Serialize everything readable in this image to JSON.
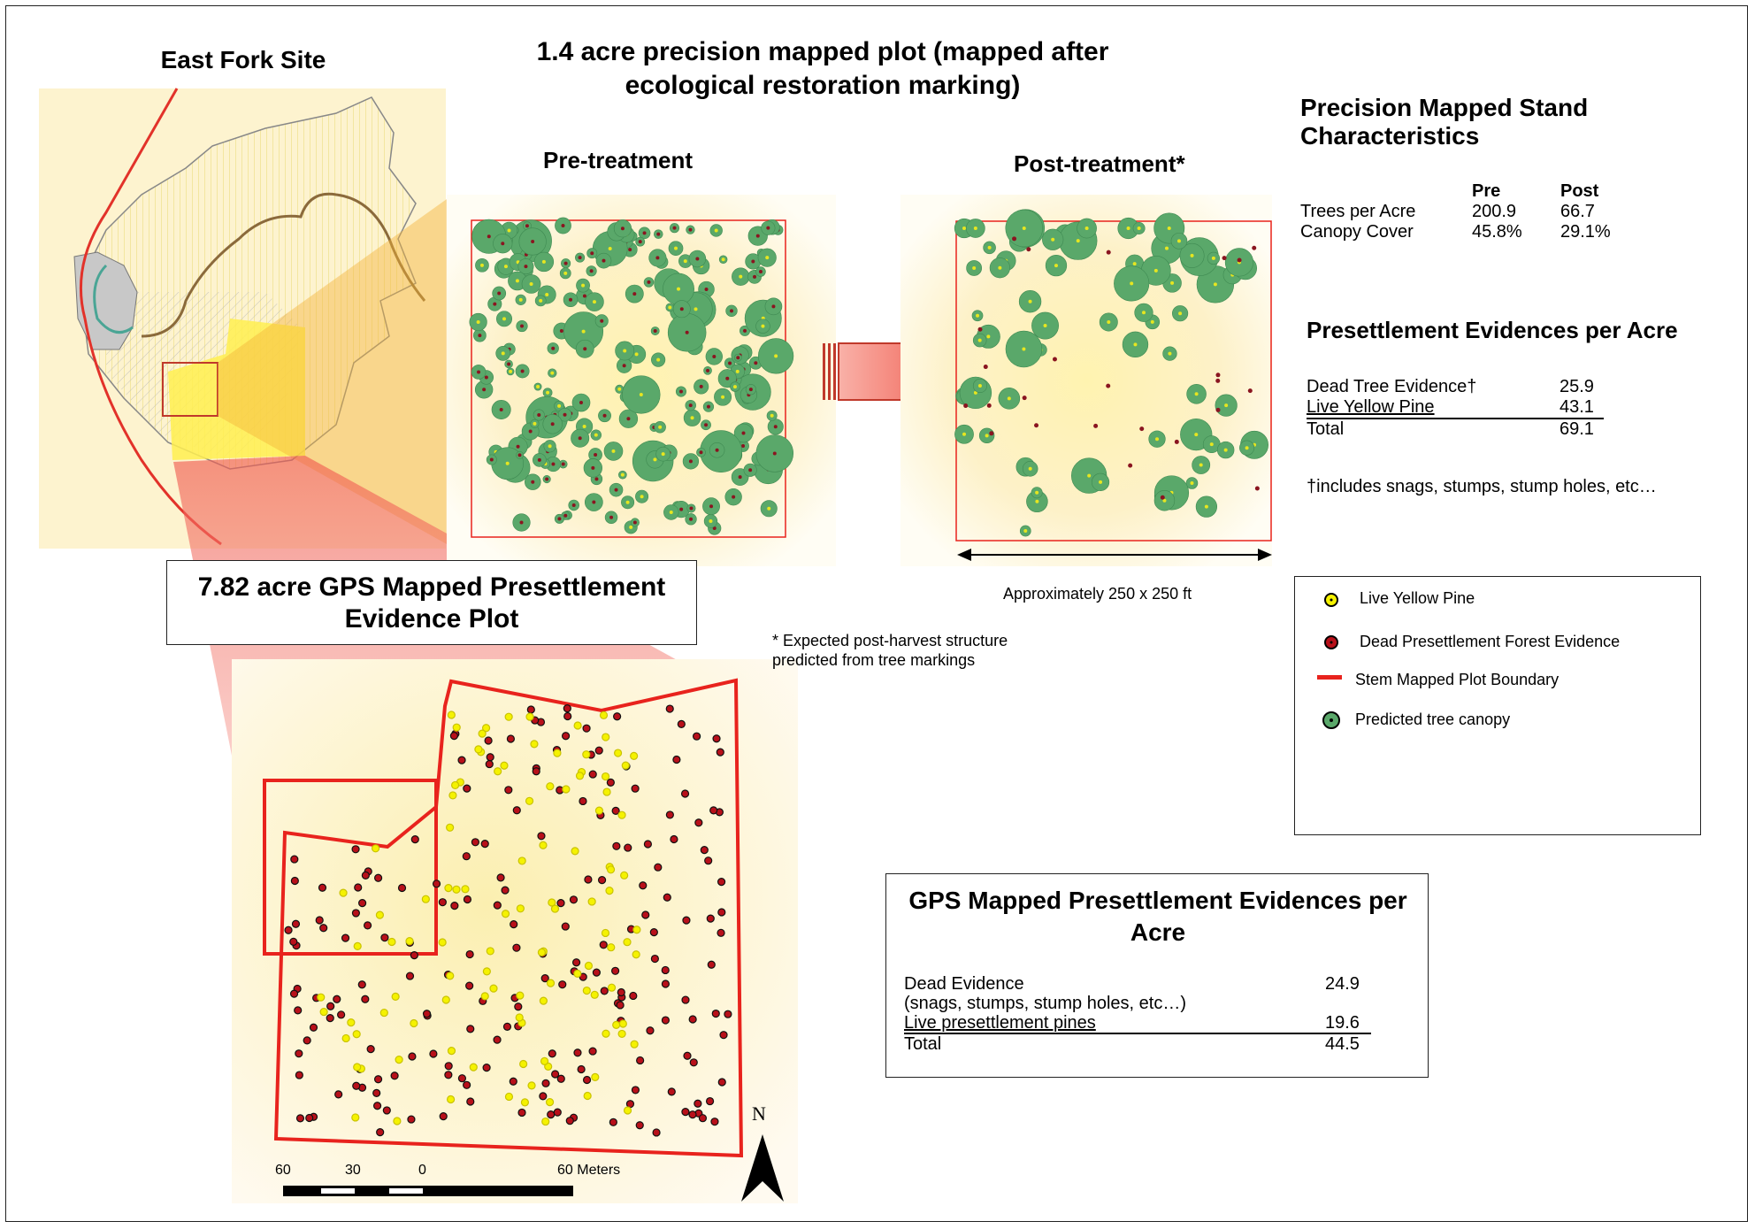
{
  "title_main": "1.4 acre precision mapped plot (mapped after ecological restoration marking)",
  "site_title": "East Fork Site",
  "pre_label": "Pre-treatment",
  "post_label": "Post-treatment*",
  "dimension_label": "Approximately 250 x 250 ft",
  "footnote_post": "* Expected post-harvest structure predicted from tree markings",
  "gps_plot_title": "7.82 acre GPS Mapped Presettlement Evidence Plot",
  "stand": {
    "title": "Precision Mapped Stand Characteristics",
    "col_pre": "Pre",
    "col_post": "Post",
    "rows": [
      {
        "label": "Trees per Acre",
        "pre": "200.9",
        "post": "66.7"
      },
      {
        "label": "Canopy Cover",
        "pre": "45.8%",
        "post": "29.1%"
      }
    ]
  },
  "presettlement": {
    "title": "Presettlement Evidences per Acre",
    "rows": [
      {
        "label": "Dead Tree Evidence†",
        "value": "25.9"
      },
      {
        "label": "Live Yellow Pine",
        "value": "43.1"
      },
      {
        "label": "Total",
        "value": "69.1"
      }
    ],
    "footnote": "†includes snags, stumps, stump holes, etc…"
  },
  "legend": {
    "items": [
      {
        "label": "Live Yellow Pine",
        "icon": "yellow-dot-icon"
      },
      {
        "label": "Dead Presettlement Forest Evidence",
        "icon": "red-dot-icon"
      },
      {
        "label": "Stem Mapped Plot Boundary",
        "icon": "red-line-icon"
      },
      {
        "label": "Predicted tree canopy",
        "icon": "green-circle-icon"
      }
    ]
  },
  "gps_evidence": {
    "title": "GPS Mapped Presettlement Evidences per Acre",
    "rows": [
      {
        "label": "Dead Evidence",
        "sub": "(snags, stumps, stump holes, etc…)",
        "value": "24.9"
      },
      {
        "label": "Live presettlement pines",
        "value": "19.6"
      },
      {
        "label": "Total",
        "value": "44.5"
      }
    ]
  },
  "scale": {
    "labels": [
      "60",
      "30",
      "0",
      "60 Meters"
    ]
  },
  "north": "N",
  "colors": {
    "boundary": "#e8231d",
    "canopy": "#5aa86a",
    "live": "#f5f200",
    "dead": "#b8101a"
  }
}
